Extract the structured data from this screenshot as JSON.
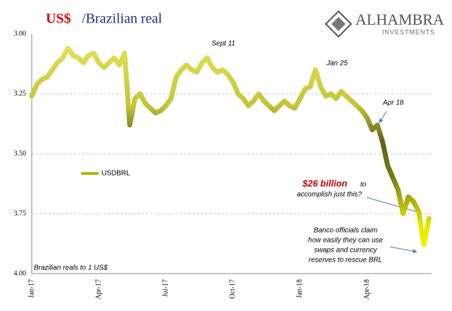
{
  "chart_data": {
    "type": "line",
    "title": [
      "US$",
      "/Brazilian real"
    ],
    "logo": {
      "name": "ALHAMBRA",
      "tagline": "INVESTMENTS"
    },
    "ylabel": "Brazilian reals to 1 US$",
    "annotations": {
      "sept": "Sept 11",
      "jan": "Jan 25",
      "apr": "Apr 18",
      "billion": "$26 billion",
      "billion_to": "to",
      "billion_rest": "accomplish just this?",
      "banco": [
        "Banco officials claim",
        "how easily they can use",
        "swaps and currency",
        "reserves to rescue BRL"
      ]
    },
    "categories": [
      "Jan-17",
      null,
      null,
      null,
      null,
      null,
      null,
      null,
      null,
      null,
      null,
      null,
      null,
      "Apr-17",
      null,
      null,
      null,
      null,
      null,
      null,
      null,
      null,
      null,
      null,
      null,
      null,
      "Jul-17",
      null,
      null,
      null,
      null,
      null,
      null,
      null,
      null,
      null,
      null,
      null,
      null,
      "Oct-17",
      null,
      null,
      null,
      null,
      null,
      null,
      null,
      null,
      null,
      null,
      null,
      null,
      "Jan-18",
      null,
      null,
      null,
      null,
      null,
      null,
      null,
      null,
      null,
      null,
      null,
      null,
      "Apr-18",
      null,
      null,
      null,
      null,
      null,
      null,
      null,
      null,
      null,
      null,
      null,
      null
    ],
    "series": [
      {
        "name": "USDBRL",
        "color": "#b5b500",
        "values": [
          3.26,
          3.21,
          3.19,
          3.18,
          3.15,
          3.12,
          3.1,
          3.06,
          3.09,
          3.1,
          3.12,
          3.09,
          3.08,
          3.12,
          3.14,
          3.12,
          3.1,
          3.13,
          3.08,
          3.38,
          3.27,
          3.25,
          3.29,
          3.31,
          3.33,
          3.32,
          3.3,
          3.27,
          3.18,
          3.15,
          3.13,
          3.15,
          3.16,
          3.12,
          3.1,
          3.14,
          3.16,
          3.15,
          3.17,
          3.2,
          3.25,
          3.27,
          3.3,
          3.28,
          3.25,
          3.28,
          3.3,
          3.32,
          3.3,
          3.28,
          3.3,
          3.31,
          3.27,
          3.23,
          3.22,
          3.15,
          3.22,
          3.26,
          3.25,
          3.27,
          3.24,
          3.26,
          3.28,
          3.3,
          3.32,
          3.35,
          3.4,
          3.38,
          3.45,
          3.55,
          3.6,
          3.65,
          3.75,
          3.68,
          3.7,
          3.74,
          3.88,
          3.77
        ]
      }
    ],
    "ylim": [
      3,
      4
    ],
    "y_inverted": true,
    "yticks": [
      {
        "value": 3,
        "label": "3.00"
      },
      3.25,
      {
        "value": 3.5,
        "label": "3.50"
      },
      3.75,
      {
        "value": 4,
        "label": "4.00"
      }
    ],
    "grid": true
  }
}
